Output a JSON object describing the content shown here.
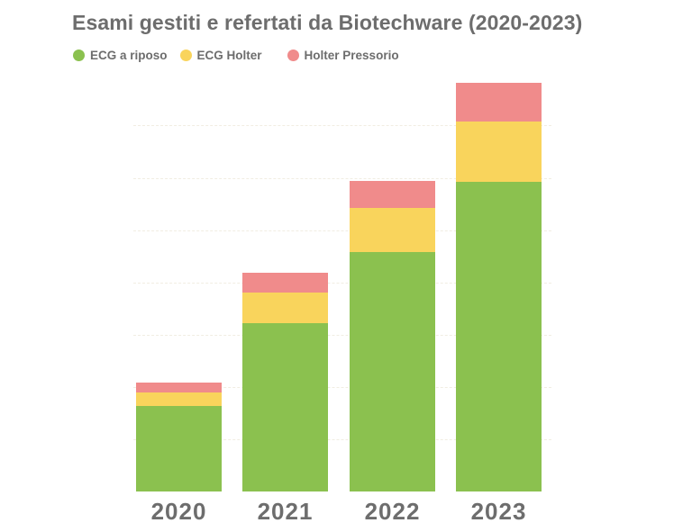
{
  "chart_data": {
    "type": "bar",
    "stacked": true,
    "title": "Esami gestiti e refertati da Biotechware (2020-2023)",
    "xlabel": "",
    "ylabel": "",
    "categories": [
      "2020",
      "2021",
      "2022",
      "2023"
    ],
    "series": [
      {
        "name": "ECG a riposso",
        "color": "#8bc14f",
        "values": [
          95,
          187,
          266,
          344
        ]
      },
      {
        "name": "ECG Holter",
        "color": "#f9d45c",
        "values": [
          15,
          34,
          49,
          67
        ]
      },
      {
        "name": "Holter Pressorio",
        "color": "#f08b8b",
        "values": [
          11,
          22,
          30,
          43
        ]
      }
    ],
    "value_units": "relative (no y-axis labels shown; heights estimated in px, gridline step ≈ 58)",
    "ylim": [
      0,
      466
    ],
    "gridlines": [
      58,
      116,
      174,
      232,
      290,
      348,
      407
    ],
    "grid": true,
    "legend_position": "top-left"
  },
  "legend": [
    {
      "label": "ECG a riposo",
      "color": "#8bc14f"
    },
    {
      "label": "ECG Holter",
      "color": "#f9d45c"
    },
    {
      "label": "Holter Pressorio",
      "color": "#f08b8b"
    }
  ]
}
